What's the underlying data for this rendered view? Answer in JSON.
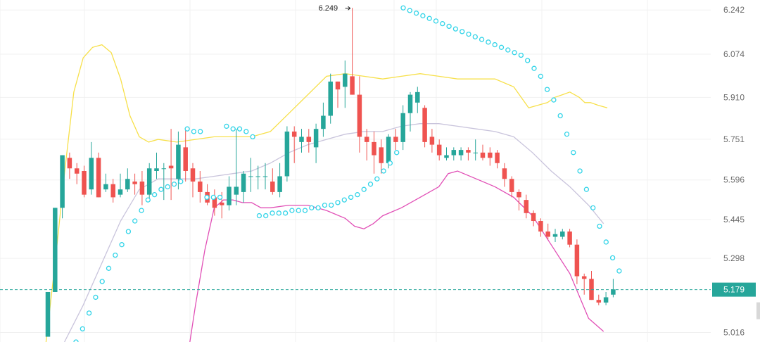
{
  "chart_data": {
    "type": "candlestick",
    "y_ticks": [
      "6.242",
      "6.074",
      "5.910",
      "5.751",
      "5.596",
      "5.445",
      "5.298",
      "5.016"
    ],
    "ylim": [
      4.98,
      6.28
    ],
    "grid": true,
    "last_price": "5.179",
    "high_marker": "6.249",
    "colors": {
      "up": "#26a69a",
      "down": "#ef5350",
      "upper_band": "#f7e04a",
      "middle_band": "#c9c4dc",
      "lower_band": "#e14fb6",
      "sar": "#32d4e8",
      "price_line": "#26a69a",
      "grid": "#f0f0f0"
    },
    "candles": [
      [
        5.0,
        5.17,
        5.0,
        5.17
      ],
      [
        5.17,
        5.49,
        5.17,
        5.49
      ],
      [
        5.49,
        5.69,
        5.45,
        5.69
      ],
      [
        5.68,
        5.64,
        5.7,
        5.6
      ],
      [
        5.64,
        5.62,
        5.66,
        5.58
      ],
      [
        5.63,
        5.54,
        5.65,
        5.53
      ],
      [
        5.56,
        5.68,
        5.74,
        5.54
      ],
      [
        5.68,
        5.53,
        5.7,
        5.53
      ],
      [
        5.56,
        5.58,
        5.62,
        5.55
      ],
      [
        5.58,
        5.53,
        5.6,
        5.51
      ],
      [
        5.54,
        5.56,
        5.62,
        5.53
      ],
      [
        5.56,
        5.6,
        5.64,
        5.55
      ],
      [
        5.59,
        5.58,
        5.62,
        5.54
      ],
      [
        5.59,
        5.54,
        5.63,
        5.5
      ],
      [
        5.54,
        5.64,
        5.66,
        5.52
      ],
      [
        5.63,
        5.64,
        5.7,
        5.6
      ],
      [
        5.64,
        5.64,
        5.66,
        5.52
      ],
      [
        5.65,
        5.64,
        5.79,
        5.52
      ],
      [
        5.6,
        5.73,
        5.78,
        5.56
      ],
      [
        5.72,
        5.63,
        5.79,
        5.59
      ],
      [
        5.64,
        5.59,
        5.66,
        5.53
      ],
      [
        5.59,
        5.55,
        5.63,
        5.51
      ],
      [
        5.55,
        5.51,
        5.58,
        5.5
      ],
      [
        5.53,
        5.49,
        5.56,
        5.46
      ],
      [
        5.51,
        5.5,
        5.55,
        5.45
      ],
      [
        5.5,
        5.57,
        5.61,
        5.48
      ],
      [
        5.54,
        5.57,
        5.79,
        5.5
      ],
      [
        5.55,
        5.62,
        5.63,
        5.51
      ],
      [
        5.61,
        5.61,
        5.68,
        5.55
      ],
      [
        5.61,
        5.61,
        5.65,
        5.56
      ],
      [
        5.61,
        5.61,
        5.66,
        5.56
      ],
      [
        5.59,
        5.55,
        5.64,
        5.54
      ],
      [
        5.55,
        5.61,
        5.66,
        5.53
      ],
      [
        5.61,
        5.78,
        5.8,
        5.59
      ],
      [
        5.78,
        5.76,
        5.8,
        5.66
      ],
      [
        5.74,
        5.76,
        5.79,
        5.7
      ],
      [
        5.76,
        5.74,
        5.79,
        5.7
      ],
      [
        5.72,
        5.79,
        5.81,
        5.66
      ],
      [
        5.79,
        5.84,
        5.89,
        5.76
      ],
      [
        5.84,
        5.97,
        6.0,
        5.81
      ],
      [
        5.97,
        5.94,
        5.97,
        5.87
      ],
      [
        5.95,
        6.0,
        6.05,
        5.87
      ],
      [
        5.99,
        5.92,
        6.25,
        5.92
      ],
      [
        5.92,
        5.76,
        5.99,
        5.7
      ],
      [
        5.76,
        5.74,
        5.79,
        5.67
      ],
      [
        5.74,
        5.69,
        5.78,
        5.62
      ],
      [
        5.72,
        5.66,
        5.75,
        5.62
      ],
      [
        5.66,
        5.76,
        5.77,
        5.64
      ],
      [
        5.76,
        5.74,
        5.79,
        5.71
      ],
      [
        5.74,
        5.85,
        5.88,
        5.71
      ],
      [
        5.85,
        5.92,
        5.93,
        5.78
      ],
      [
        5.89,
        5.93,
        5.95,
        5.85
      ],
      [
        5.87,
        5.74,
        5.88,
        5.72
      ],
      [
        5.76,
        5.73,
        5.79,
        5.7
      ],
      [
        5.73,
        5.69,
        5.75,
        5.67
      ],
      [
        5.68,
        5.69,
        5.72,
        5.67
      ],
      [
        5.69,
        5.71,
        5.72,
        5.67
      ],
      [
        5.69,
        5.71,
        5.72,
        5.67
      ],
      [
        5.71,
        5.7,
        5.72,
        5.67
      ],
      [
        5.7,
        5.7,
        5.75,
        5.67
      ],
      [
        5.7,
        5.68,
        5.73,
        5.67
      ],
      [
        5.7,
        5.68,
        5.72,
        5.65
      ],
      [
        5.7,
        5.66,
        5.71,
        5.64
      ],
      [
        5.64,
        5.6,
        5.66,
        5.57
      ],
      [
        5.6,
        5.55,
        5.61,
        5.53
      ],
      [
        5.55,
        5.53,
        5.56,
        5.48
      ],
      [
        5.52,
        5.47,
        5.54,
        5.45
      ],
      [
        5.47,
        5.44,
        5.48,
        5.42
      ],
      [
        5.44,
        5.4,
        5.45,
        5.38
      ],
      [
        5.4,
        5.38,
        5.43,
        5.37
      ],
      [
        5.38,
        5.39,
        5.41,
        5.36
      ],
      [
        5.38,
        5.4,
        5.41,
        5.37
      ],
      [
        5.4,
        5.35,
        5.41,
        5.34
      ],
      [
        5.35,
        5.23,
        5.37,
        5.2
      ],
      [
        5.23,
        5.22,
        5.24,
        5.16
      ],
      [
        5.22,
        5.14,
        5.25,
        5.14
      ],
      [
        5.14,
        5.13,
        5.16,
        5.12
      ],
      [
        5.13,
        5.15,
        5.17,
        5.12
      ],
      [
        5.16,
        5.18,
        5.22,
        5.15
      ]
    ],
    "upper_band": [
      [
        0,
        4.97
      ],
      [
        5,
        5.28
      ],
      [
        10,
        5.62
      ],
      [
        15,
        5.93
      ],
      [
        20,
        6.06
      ],
      [
        25,
        6.1
      ],
      [
        30,
        6.11
      ],
      [
        35,
        6.08
      ],
      [
        40,
        5.98
      ],
      [
        45,
        5.84
      ],
      [
        50,
        5.76
      ],
      [
        55,
        5.74
      ],
      [
        60,
        5.75
      ],
      [
        70,
        5.74
      ],
      [
        80,
        5.75
      ],
      [
        90,
        5.76
      ],
      [
        100,
        5.76
      ],
      [
        110,
        5.76
      ],
      [
        120,
        5.78
      ],
      [
        130,
        5.85
      ],
      [
        140,
        5.92
      ],
      [
        150,
        5.99
      ],
      [
        160,
        6.0
      ],
      [
        170,
        5.99
      ],
      [
        180,
        5.98
      ],
      [
        190,
        5.99
      ],
      [
        200,
        6.0
      ],
      [
        210,
        5.99
      ],
      [
        220,
        5.98
      ],
      [
        230,
        5.98
      ],
      [
        240,
        5.98
      ],
      [
        250,
        5.95
      ],
      [
        258,
        5.87
      ],
      [
        263,
        5.88
      ],
      [
        268,
        5.89
      ],
      [
        272,
        5.91
      ],
      [
        276,
        5.92
      ],
      [
        280,
        5.93
      ],
      [
        285,
        5.91
      ],
      [
        288,
        5.89
      ],
      [
        291,
        5.89
      ],
      [
        295,
        5.88
      ],
      [
        300,
        5.87
      ]
    ],
    "middle_band": [
      [
        10,
        4.98
      ],
      [
        20,
        5.12
      ],
      [
        30,
        5.28
      ],
      [
        40,
        5.44
      ],
      [
        50,
        5.56
      ],
      [
        60,
        5.6
      ],
      [
        70,
        5.6
      ],
      [
        80,
        5.6
      ],
      [
        90,
        5.61
      ],
      [
        100,
        5.62
      ],
      [
        110,
        5.63
      ],
      [
        120,
        5.66
      ],
      [
        130,
        5.7
      ],
      [
        140,
        5.73
      ],
      [
        150,
        5.75
      ],
      [
        160,
        5.77
      ],
      [
        170,
        5.78
      ],
      [
        180,
        5.78
      ],
      [
        190,
        5.8
      ],
      [
        200,
        5.81
      ],
      [
        210,
        5.81
      ],
      [
        220,
        5.8
      ],
      [
        230,
        5.79
      ],
      [
        240,
        5.78
      ],
      [
        250,
        5.76
      ],
      [
        260,
        5.7
      ],
      [
        270,
        5.63
      ],
      [
        280,
        5.57
      ],
      [
        290,
        5.5
      ],
      [
        298,
        5.43
      ]
    ],
    "lower_band": [
      [
        77,
        4.98
      ],
      [
        80,
        5.12
      ],
      [
        85,
        5.33
      ],
      [
        90,
        5.49
      ],
      [
        95,
        5.52
      ],
      [
        100,
        5.52
      ],
      [
        105,
        5.51
      ],
      [
        110,
        5.51
      ],
      [
        115,
        5.49
      ],
      [
        120,
        5.49
      ],
      [
        130,
        5.5
      ],
      [
        140,
        5.5
      ],
      [
        150,
        5.48
      ],
      [
        160,
        5.45
      ],
      [
        165,
        5.42
      ],
      [
        170,
        5.41
      ],
      [
        175,
        5.43
      ],
      [
        180,
        5.46
      ],
      [
        190,
        5.49
      ],
      [
        200,
        5.53
      ],
      [
        210,
        5.57
      ],
      [
        215,
        5.62
      ],
      [
        220,
        5.63
      ],
      [
        230,
        5.6
      ],
      [
        240,
        5.57
      ],
      [
        250,
        5.53
      ],
      [
        260,
        5.46
      ],
      [
        270,
        5.35
      ],
      [
        280,
        5.24
      ],
      [
        290,
        5.07
      ],
      [
        298,
        5.02
      ]
    ],
    "sar_points": [
      [
        1,
        4.98
      ],
      [
        2,
        5.03
      ],
      [
        3,
        5.09
      ],
      [
        4,
        5.15
      ],
      [
        5,
        5.21
      ],
      [
        6,
        5.26
      ],
      [
        7,
        5.31
      ],
      [
        8,
        5.35
      ],
      [
        9,
        5.4
      ],
      [
        10,
        5.44
      ],
      [
        11,
        5.48
      ],
      [
        12,
        5.52
      ],
      [
        13,
        5.54
      ],
      [
        14,
        5.56
      ],
      [
        15,
        5.57
      ],
      [
        16,
        5.58
      ],
      [
        17,
        5.59
      ],
      [
        18,
        5.79
      ],
      [
        19,
        5.78
      ],
      [
        20,
        5.78
      ],
      [
        21,
        5.53
      ],
      [
        22,
        5.53
      ],
      [
        23,
        5.53
      ],
      [
        24,
        5.8
      ],
      [
        25,
        5.79
      ],
      [
        26,
        5.79
      ],
      [
        27,
        5.78
      ],
      [
        28,
        5.76
      ],
      [
        29,
        5.46
      ],
      [
        30,
        5.46
      ],
      [
        31,
        5.47
      ],
      [
        32,
        5.47
      ],
      [
        33,
        5.47
      ],
      [
        34,
        5.48
      ],
      [
        35,
        5.48
      ],
      [
        36,
        5.48
      ],
      [
        37,
        5.49
      ],
      [
        38,
        5.49
      ],
      [
        39,
        5.5
      ],
      [
        40,
        5.5
      ],
      [
        41,
        5.51
      ],
      [
        42,
        5.52
      ],
      [
        43,
        5.53
      ],
      [
        44,
        5.54
      ],
      [
        45,
        5.56
      ],
      [
        46,
        5.58
      ],
      [
        47,
        5.6
      ],
      [
        48,
        5.63
      ],
      [
        49,
        5.66
      ],
      [
        50,
        5.7
      ],
      [
        51,
        6.25
      ],
      [
        52,
        6.24
      ],
      [
        53,
        6.23
      ],
      [
        54,
        6.22
      ],
      [
        55,
        6.21
      ],
      [
        56,
        6.2
      ],
      [
        57,
        6.19
      ],
      [
        58,
        6.18
      ],
      [
        59,
        6.17
      ],
      [
        60,
        6.16
      ],
      [
        61,
        6.15
      ],
      [
        62,
        6.14
      ],
      [
        63,
        6.13
      ],
      [
        64,
        6.12
      ],
      [
        65,
        6.11
      ],
      [
        66,
        6.1
      ],
      [
        67,
        6.09
      ],
      [
        68,
        6.08
      ],
      [
        69,
        6.07
      ],
      [
        70,
        6.05
      ],
      [
        71,
        6.02
      ],
      [
        72,
        5.99
      ],
      [
        73,
        5.94
      ],
      [
        74,
        5.9
      ],
      [
        75,
        5.84
      ],
      [
        76,
        5.77
      ],
      [
        77,
        5.7
      ],
      [
        78,
        5.63
      ],
      [
        79,
        5.56
      ],
      [
        80,
        5.49
      ],
      [
        81,
        5.42
      ],
      [
        82,
        5.36
      ],
      [
        83,
        5.3
      ],
      [
        84,
        5.25
      ]
    ]
  }
}
